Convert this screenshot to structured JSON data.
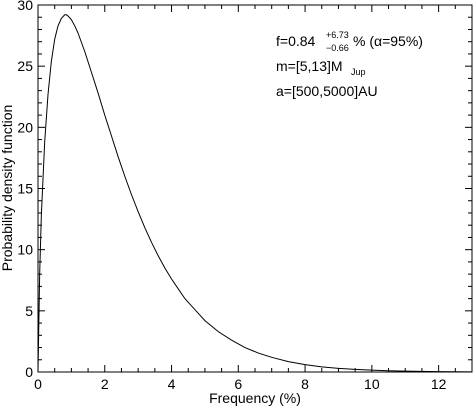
{
  "chart_data": {
    "type": "line",
    "title": "",
    "xlabel": "Frequency (%)",
    "ylabel": "Probability density function",
    "xlim": [
      0,
      13
    ],
    "ylim": [
      0,
      30
    ],
    "x_ticks": [
      "0",
      "2",
      "4",
      "6",
      "8",
      "10",
      "12"
    ],
    "y_ticks": [
      "0",
      "5",
      "10",
      "15",
      "20",
      "25",
      "30"
    ],
    "grid": false,
    "legend": "none",
    "line_color": "#000000",
    "series": [
      {
        "x": [
          0,
          0.05,
          0.1,
          0.2,
          0.3,
          0.4,
          0.5,
          0.6,
          0.7,
          0.8,
          0.85,
          0.9,
          1.0,
          1.1,
          1.2,
          1.4,
          1.6,
          1.8,
          2.0,
          2.2,
          2.4,
          2.6,
          2.8,
          3.0,
          3.2,
          3.4,
          3.6,
          3.8,
          4.0,
          4.2,
          4.4,
          4.6,
          4.8,
          5.0,
          5.4,
          5.8,
          6.2,
          6.6,
          7.0,
          7.5,
          8.0,
          8.5,
          9.0,
          9.5,
          10.0,
          10.5,
          11.0,
          11.5,
          12.0,
          12.5,
          13.0
        ],
        "values": [
          0,
          8.0,
          12.8,
          18.8,
          22.7,
          25.4,
          27.2,
          28.3,
          28.9,
          29.2,
          29.2,
          29.1,
          28.8,
          28.3,
          27.7,
          26.2,
          24.5,
          22.8,
          21.0,
          19.3,
          17.6,
          16.0,
          14.5,
          13.1,
          11.8,
          10.6,
          9.5,
          8.5,
          7.6,
          6.8,
          6.0,
          5.4,
          4.8,
          4.2,
          3.3,
          2.6,
          2.0,
          1.55,
          1.2,
          0.85,
          0.6,
          0.42,
          0.3,
          0.21,
          0.15,
          0.1,
          0.07,
          0.05,
          0.03,
          0.02,
          0.015
        ]
      }
    ]
  },
  "annotations": {
    "f_main": "f=0.84",
    "f_upper": "+6.73",
    "f_lower": "−0.66",
    "f_tail": "% (α=95%)",
    "m_main": "m=[5,13]M",
    "m_sub": "Jup",
    "a_main": "a=[500,5000]AU"
  }
}
